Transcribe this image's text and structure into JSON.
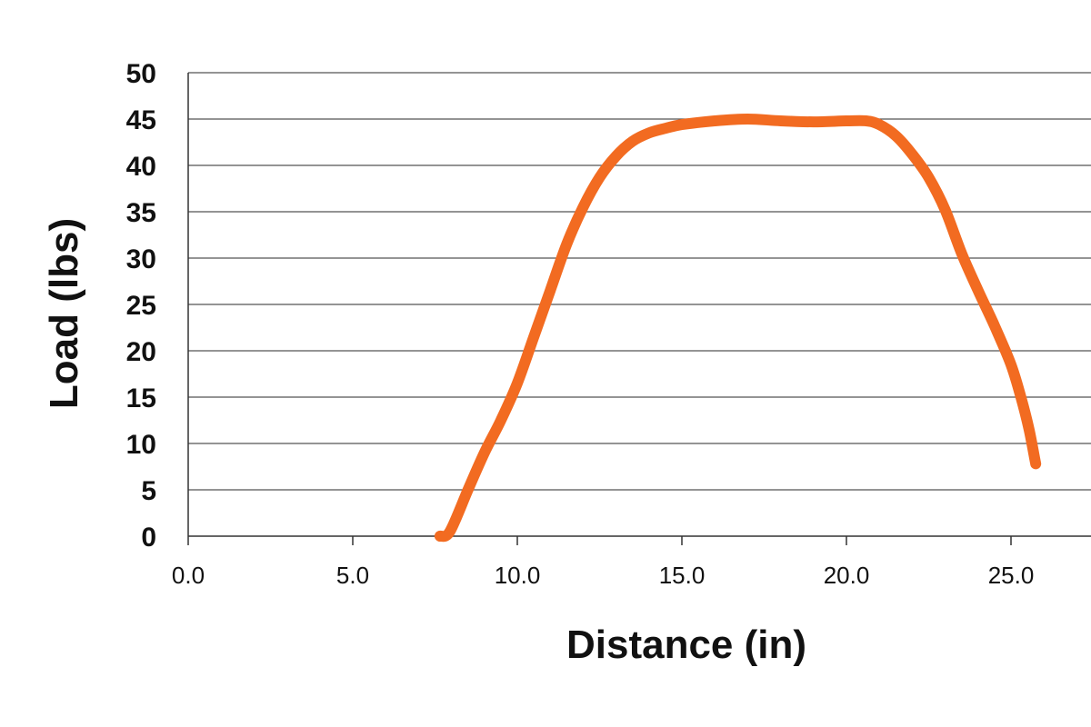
{
  "chart_data": {
    "type": "line",
    "title": "",
    "xlabel": "Distance (in)",
    "ylabel": "Load (lbs)",
    "xlim": [
      0,
      27.5
    ],
    "ylim": [
      0,
      50
    ],
    "x_ticks": [
      "0.0",
      "5.0",
      "10.0",
      "15.0",
      "20.0",
      "25.0"
    ],
    "y_ticks": [
      "0",
      "5",
      "10",
      "15",
      "20",
      "25",
      "30",
      "35",
      "40",
      "45",
      "50"
    ],
    "grid": "horizontal",
    "legend": "none",
    "series": [
      {
        "color": "#f26b21",
        "points": [
          [
            7.65,
            0
          ],
          [
            7.95,
            0.5
          ],
          [
            8.5,
            5
          ],
          [
            9.0,
            9
          ],
          [
            9.5,
            12.5
          ],
          [
            10.0,
            16.5
          ],
          [
            10.5,
            21.5
          ],
          [
            11.0,
            26.5
          ],
          [
            11.5,
            31.5
          ],
          [
            12.0,
            35.5
          ],
          [
            12.5,
            38.7
          ],
          [
            13.0,
            41
          ],
          [
            13.5,
            42.6
          ],
          [
            14.0,
            43.5
          ],
          [
            14.5,
            44
          ],
          [
            15.0,
            44.4
          ],
          [
            16.0,
            44.8
          ],
          [
            17.0,
            45
          ],
          [
            18.0,
            44.8
          ],
          [
            19.0,
            44.7
          ],
          [
            20.0,
            44.8
          ],
          [
            20.6,
            44.8
          ],
          [
            21.0,
            44.4
          ],
          [
            21.5,
            43.2
          ],
          [
            22.0,
            41.2
          ],
          [
            22.5,
            38.7
          ],
          [
            23.0,
            35.2
          ],
          [
            23.5,
            30.5
          ],
          [
            24.0,
            26.5
          ],
          [
            24.5,
            22.7
          ],
          [
            25.0,
            18.5
          ],
          [
            25.3,
            15
          ],
          [
            25.55,
            11.5
          ],
          [
            25.75,
            7.8
          ]
        ]
      }
    ]
  }
}
